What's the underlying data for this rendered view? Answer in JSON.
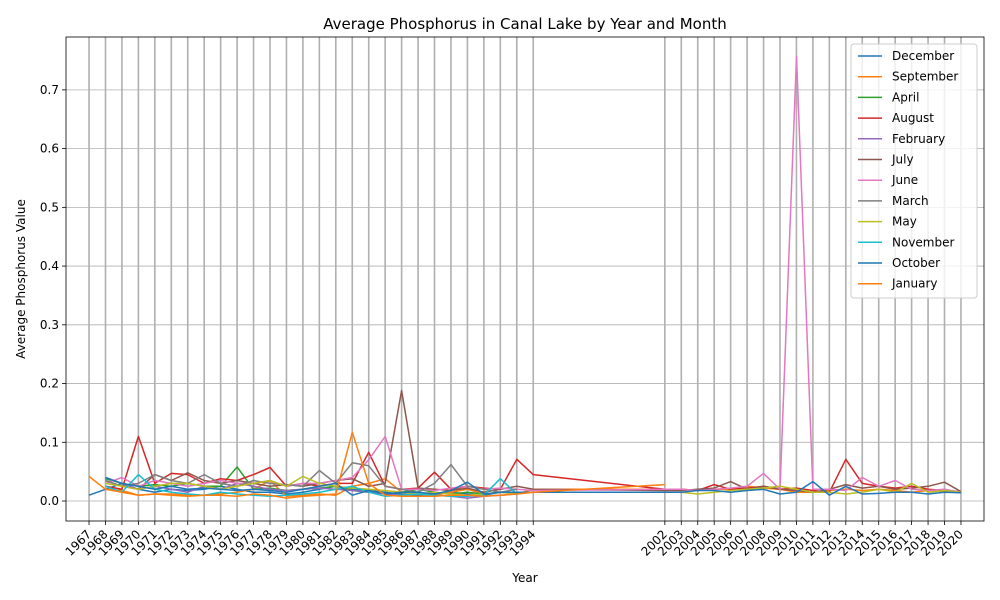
{
  "chart_data": {
    "type": "line",
    "title": "Average Phosphorus in Canal Lake by Year and Month",
    "xlabel": "Year",
    "ylabel": "Average Phosphorus Value",
    "xlim": [
      1965.6,
      2021.4
    ],
    "ylim": [
      -0.034,
      0.79
    ],
    "yticks": [
      0.0,
      0.1,
      0.2,
      0.3,
      0.4,
      0.5,
      0.6,
      0.7
    ],
    "ytick_labels": [
      "0.0",
      "0.1",
      "0.2",
      "0.3",
      "0.4",
      "0.5",
      "0.6",
      "0.7"
    ],
    "xticks": [
      1967,
      1968,
      1969,
      1970,
      1971,
      1972,
      1973,
      1974,
      1975,
      1976,
      1977,
      1978,
      1979,
      1980,
      1981,
      1982,
      1983,
      1984,
      1985,
      1986,
      1987,
      1988,
      1989,
      1990,
      1991,
      1992,
      1993,
      1994,
      2002,
      2003,
      2004,
      2005,
      2006,
      2007,
      2008,
      2009,
      2010,
      2011,
      2012,
      2013,
      2014,
      2015,
      2016,
      2017,
      2018,
      2019,
      2020
    ],
    "xtick_labels": [
      "1967",
      "1968",
      "1969",
      "1970",
      "1971",
      "1972",
      "1973",
      "1974",
      "1975",
      "1976",
      "1977",
      "1978",
      "1979",
      "1980",
      "1981",
      "1982",
      "1983",
      "1984",
      "1985",
      "1986",
      "1987",
      "1988",
      "1989",
      "1990",
      "1991",
      "1992",
      "1993",
      "1994",
      "2002",
      "2003",
      "2004",
      "2005",
      "2006",
      "2007",
      "2008",
      "2009",
      "2010",
      "2011",
      "2012",
      "2013",
      "2014",
      "2015",
      "2016",
      "2017",
      "2018",
      "2019",
      "2020"
    ],
    "grid": true,
    "legend_position": "top-right",
    "series": [
      {
        "name": "December",
        "color": "#1f77b4",
        "x": [
          1967,
          1968,
          1969,
          1970,
          1971,
          1972,
          1973,
          1974,
          1975,
          1976,
          1977,
          1978,
          1979,
          1980,
          1981,
          1982,
          1983,
          1984,
          1985,
          1986,
          1987,
          1988,
          1989,
          1990,
          1991,
          1992,
          1993
        ],
        "y": [
          0.01,
          0.02,
          0.03,
          0.02,
          0.015,
          0.02,
          0.018,
          0.02,
          0.025,
          0.02,
          0.015,
          0.015,
          0.012,
          0.015,
          0.02,
          0.025,
          0.02,
          0.018,
          0.015,
          0.012,
          0.01,
          0.012,
          0.015,
          0.012,
          0.01,
          0.015,
          0.015
        ]
      },
      {
        "name": "September",
        "color": "#ff7f0e",
        "x": [
          1967,
          1968,
          1969,
          1970,
          1971,
          1972,
          1973,
          1974,
          1975,
          1976,
          1977,
          1978,
          1979,
          1980,
          1981,
          1982,
          1983,
          1984,
          1985,
          1986,
          1987,
          1988,
          1989,
          1990,
          1991,
          1992,
          1993,
          1994,
          2002,
          2003,
          2004,
          2005,
          2006,
          2007,
          2008,
          2009,
          2010,
          2011,
          2012,
          2013,
          2014,
          2015,
          2016,
          2017,
          2018,
          2019,
          2020
        ],
        "y": [
          0.042,
          0.02,
          0.018,
          0.01,
          0.012,
          0.012,
          0.01,
          0.01,
          0.012,
          0.015,
          0.02,
          0.035,
          0.008,
          0.01,
          0.012,
          0.01,
          0.025,
          0.03,
          0.038,
          0.015,
          0.012,
          0.01,
          0.015,
          0.02,
          0.012,
          0.015,
          0.012,
          0.02,
          0.02,
          0.02,
          0.018,
          0.02,
          0.02,
          0.025,
          0.022,
          0.02,
          0.015,
          0.015,
          0.018,
          0.02,
          0.018,
          0.02,
          0.018,
          0.015,
          0.018,
          0.016,
          0.015
        ]
      },
      {
        "name": "April",
        "color": "#2ca02c",
        "x": [
          1968,
          1969,
          1970,
          1971,
          1972,
          1973,
          1974,
          1975,
          1976,
          1977,
          1978,
          1979,
          1980,
          1981,
          1982,
          1983,
          1984,
          1985,
          1986,
          1987,
          1988,
          1989,
          1990,
          1991,
          1992,
          1993
        ],
        "y": [
          0.038,
          0.03,
          0.025,
          0.028,
          0.025,
          0.03,
          0.025,
          0.025,
          0.058,
          0.02,
          0.022,
          0.018,
          0.02,
          0.022,
          0.025,
          0.018,
          0.015,
          0.012,
          0.015,
          0.02,
          0.015,
          0.012,
          0.015,
          0.012,
          0.015,
          0.015
        ]
      },
      {
        "name": "August",
        "color": "#d62728",
        "x": [
          1968,
          1969,
          1970,
          1971,
          1972,
          1973,
          1974,
          1975,
          1976,
          1977,
          1978,
          1979,
          1980,
          1981,
          1982,
          1983,
          1984,
          1985,
          1986,
          1987,
          1988,
          1989,
          1990,
          1991,
          1992,
          1993,
          1994,
          2002,
          2003,
          2004,
          2005,
          2006,
          2007,
          2008,
          2009,
          2010,
          2011,
          2012,
          2013,
          2014,
          2015,
          2016,
          2017,
          2018,
          2019,
          2020
        ],
        "y": [
          0.025,
          0.02,
          0.11,
          0.03,
          0.047,
          0.045,
          0.03,
          0.038,
          0.035,
          0.045,
          0.057,
          0.025,
          0.03,
          0.025,
          0.03,
          0.03,
          0.083,
          0.025,
          0.02,
          0.022,
          0.049,
          0.02,
          0.025,
          0.022,
          0.02,
          0.071,
          0.045,
          0.02,
          0.02,
          0.018,
          0.028,
          0.02,
          0.022,
          0.025,
          0.02,
          0.022,
          0.018,
          0.015,
          0.071,
          0.03,
          0.025,
          0.022,
          0.025,
          0.02,
          0.018,
          0.016
        ]
      },
      {
        "name": "February",
        "color": "#9467bd",
        "x": [
          1968,
          1969,
          1970,
          1971,
          1972,
          1973,
          1974,
          1975,
          1976,
          1977,
          1978,
          1979,
          1980,
          1981,
          1982,
          1983,
          1984,
          1985,
          1986,
          1987,
          1988,
          1989,
          1990,
          1991,
          1992,
          1993
        ],
        "y": [
          0.04,
          0.03,
          0.02,
          0.025,
          0.02,
          0.015,
          0.025,
          0.02,
          0.03,
          0.025,
          0.02,
          0.018,
          0.02,
          0.022,
          0.02,
          0.018,
          0.015,
          0.012,
          0.01,
          0.012,
          0.01,
          0.008,
          0.005,
          0.008,
          0.01,
          0.012
        ]
      },
      {
        "name": "July",
        "color": "#8c564b",
        "x": [
          1968,
          1969,
          1970,
          1971,
          1972,
          1973,
          1974,
          1975,
          1976,
          1977,
          1978,
          1979,
          1980,
          1981,
          1982,
          1983,
          1984,
          1985,
          1986,
          1987,
          1988,
          1989,
          1990,
          1991,
          1992,
          1993,
          1994,
          2002,
          2003,
          2004,
          2005,
          2006,
          2007,
          2008,
          2009,
          2010,
          2011,
          2012,
          2013,
          2014,
          2015,
          2016,
          2017,
          2018,
          2019,
          2020
        ],
        "y": [
          0.035,
          0.025,
          0.02,
          0.045,
          0.035,
          0.048,
          0.035,
          0.03,
          0.035,
          0.03,
          0.025,
          0.028,
          0.025,
          0.03,
          0.035,
          0.038,
          0.025,
          0.03,
          0.188,
          0.022,
          0.02,
          0.018,
          0.022,
          0.015,
          0.02,
          0.025,
          0.02,
          0.018,
          0.018,
          0.02,
          0.022,
          0.033,
          0.02,
          0.025,
          0.02,
          0.018,
          0.015,
          0.02,
          0.028,
          0.022,
          0.025,
          0.02,
          0.022,
          0.025,
          0.032,
          0.016
        ]
      },
      {
        "name": "June",
        "color": "#e377c2",
        "x": [
          1968,
          1969,
          1970,
          1971,
          1972,
          1973,
          1974,
          1975,
          1976,
          1977,
          1978,
          1979,
          1980,
          1981,
          1982,
          1983,
          1984,
          1985,
          1986,
          1987,
          1988,
          1989,
          1990,
          1991,
          1992,
          1993,
          1994,
          2002,
          2003,
          2004,
          2005,
          2006,
          2007,
          2008,
          2009,
          2010,
          2011,
          2012,
          2013,
          2014,
          2015,
          2016,
          2017,
          2018,
          2019,
          2020
        ],
        "y": [
          0.03,
          0.04,
          0.025,
          0.035,
          0.03,
          0.025,
          0.03,
          0.035,
          0.03,
          0.03,
          0.035,
          0.025,
          0.03,
          0.03,
          0.035,
          0.04,
          0.07,
          0.11,
          0.02,
          0.02,
          0.018,
          0.022,
          0.025,
          0.02,
          0.022,
          0.02,
          0.018,
          0.02,
          0.02,
          0.018,
          0.02,
          0.022,
          0.025,
          0.047,
          0.02,
          0.757,
          0.02,
          0.02,
          0.018,
          0.04,
          0.025,
          0.035,
          0.02,
          0.018,
          0.02,
          0.015
        ]
      },
      {
        "name": "March",
        "color": "#7f7f7f",
        "x": [
          1968,
          1969,
          1970,
          1971,
          1972,
          1973,
          1974,
          1975,
          1976,
          1977,
          1978,
          1979,
          1980,
          1981,
          1982,
          1983,
          1984,
          1985,
          1986,
          1987,
          1988,
          1989,
          1990,
          1991,
          1992,
          1993
        ],
        "y": [
          0.035,
          0.025,
          0.03,
          0.045,
          0.035,
          0.03,
          0.045,
          0.03,
          0.025,
          0.035,
          0.03,
          0.028,
          0.025,
          0.052,
          0.03,
          0.065,
          0.06,
          0.025,
          0.02,
          0.015,
          0.03,
          0.062,
          0.025,
          0.02,
          0.015,
          0.02
        ]
      },
      {
        "name": "May",
        "color": "#bcbd22",
        "x": [
          1968,
          1969,
          1970,
          1971,
          1972,
          1973,
          1974,
          1975,
          1976,
          1977,
          1978,
          1979,
          1980,
          1981,
          1982,
          1983,
          1984,
          1985,
          1986,
          1987,
          1988,
          1989,
          1990,
          1991,
          1992,
          1993,
          1994,
          2002,
          2003,
          2004,
          2005,
          2006,
          2007,
          2008,
          2009,
          2010,
          2011,
          2012,
          2013,
          2014,
          2015,
          2016,
          2017,
          2018,
          2019,
          2020
        ],
        "y": [
          0.03,
          0.025,
          0.02,
          0.025,
          0.03,
          0.03,
          0.025,
          0.02,
          0.025,
          0.03,
          0.035,
          0.025,
          0.042,
          0.03,
          0.025,
          0.022,
          0.02,
          0.018,
          0.015,
          0.012,
          0.015,
          0.012,
          0.01,
          0.012,
          0.015,
          0.012,
          0.015,
          0.015,
          0.015,
          0.012,
          0.015,
          0.018,
          0.02,
          0.022,
          0.025,
          0.02,
          0.015,
          0.015,
          0.012,
          0.015,
          0.02,
          0.015,
          0.03,
          0.015,
          0.018,
          0.015
        ]
      },
      {
        "name": "November",
        "color": "#17becf",
        "x": [
          1968,
          1969,
          1970,
          1971,
          1972,
          1973,
          1974,
          1975,
          1976,
          1977,
          1978,
          1979,
          1980,
          1981,
          1982,
          1983,
          1984,
          1985,
          1986,
          1987,
          1988,
          1989,
          1990,
          1991,
          1992,
          1993
        ],
        "y": [
          0.025,
          0.015,
          0.045,
          0.02,
          0.015,
          0.012,
          0.01,
          0.015,
          0.012,
          0.01,
          0.008,
          0.01,
          0.012,
          0.015,
          0.02,
          0.025,
          0.015,
          0.008,
          0.01,
          0.012,
          0.01,
          0.008,
          0.008,
          0.01,
          0.038,
          0.012
        ]
      },
      {
        "name": "October",
        "color": "#1f77b4",
        "x": [
          1968,
          1969,
          1970,
          1971,
          1972,
          1973,
          1974,
          1975,
          1976,
          1977,
          1978,
          1979,
          1980,
          1981,
          1982,
          1983,
          1984,
          1985,
          1986,
          1987,
          1988,
          1989,
          1990,
          1991,
          1992,
          1993,
          1994,
          2002,
          2003,
          2004,
          2005,
          2006,
          2007,
          2008,
          2009,
          2010,
          2011,
          2012,
          2013,
          2014,
          2015,
          2016,
          2017,
          2018,
          2019,
          2020
        ],
        "y": [
          0.04,
          0.03,
          0.025,
          0.02,
          0.025,
          0.02,
          0.022,
          0.02,
          0.018,
          0.02,
          0.018,
          0.015,
          0.02,
          0.025,
          0.03,
          0.01,
          0.018,
          0.012,
          0.015,
          0.015,
          0.012,
          0.018,
          0.032,
          0.012,
          0.015,
          0.015,
          0.015,
          0.015,
          0.015,
          0.018,
          0.018,
          0.015,
          0.018,
          0.02,
          0.012,
          0.015,
          0.033,
          0.01,
          0.025,
          0.012,
          0.013,
          0.015,
          0.015,
          0.012,
          0.015,
          0.014
        ]
      },
      {
        "name": "January",
        "color": "#ff7f0e",
        "x": [
          1968,
          1969,
          1970,
          1971,
          1972,
          1973,
          1974,
          1975,
          1976,
          1977,
          1978,
          1979,
          1980,
          1981,
          1982,
          1983,
          1984,
          1985,
          1986,
          1987,
          1988,
          1989,
          1990,
          1991,
          1992,
          1993,
          1994,
          2002
        ],
        "y": [
          0.02,
          0.015,
          0.01,
          0.012,
          0.01,
          0.008,
          0.01,
          0.01,
          0.008,
          0.012,
          0.01,
          0.005,
          0.008,
          0.01,
          0.012,
          0.117,
          0.03,
          0.01,
          0.008,
          0.008,
          0.008,
          0.01,
          0.01,
          0.008,
          0.01,
          0.012,
          0.015,
          0.028
        ]
      }
    ]
  }
}
